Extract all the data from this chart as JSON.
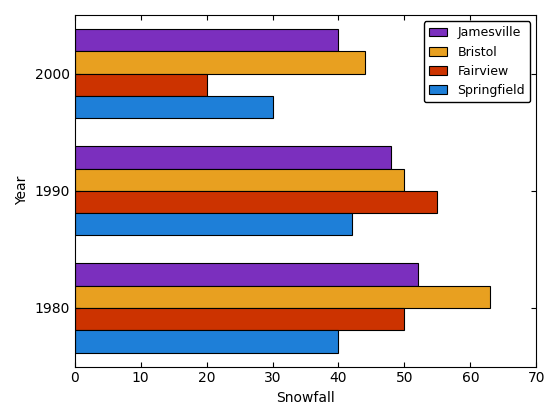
{
  "years": [
    2000,
    1990,
    1980
  ],
  "cities": [
    "Jamesville",
    "Bristol",
    "Fairview",
    "Springfield"
  ],
  "colors": [
    "#7B2FBE",
    "#E8A020",
    "#CC3300",
    "#1E7FD8"
  ],
  "values": {
    "2000": [
      40,
      44,
      20,
      30
    ],
    "1990": [
      48,
      50,
      55,
      42
    ],
    "1980": [
      52,
      63,
      50,
      40
    ]
  },
  "xlabel": "Snowfall",
  "ylabel": "Year",
  "xlim": [
    0,
    70
  ],
  "xticks": [
    0,
    10,
    20,
    30,
    40,
    50,
    60,
    70
  ],
  "ytick_labels": [
    "2000",
    "1990",
    "1980"
  ],
  "legend_order": [
    "Jamesville",
    "Bristol",
    "Fairview",
    "Springfield"
  ]
}
